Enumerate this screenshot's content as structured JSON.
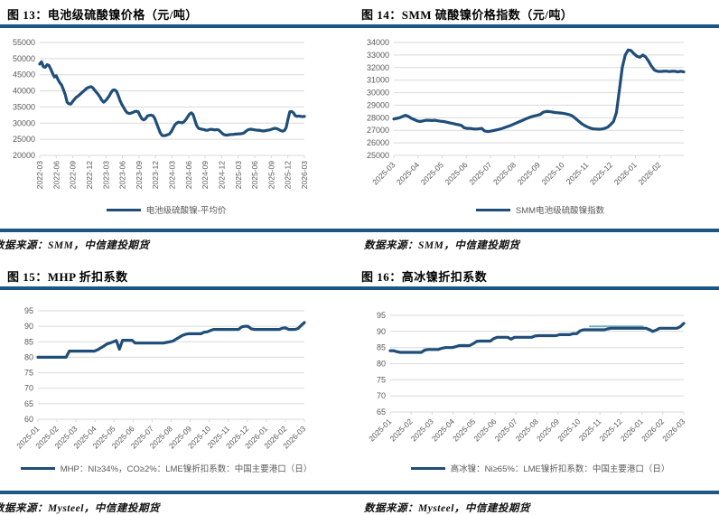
{
  "colors": {
    "rule": "#1A5784",
    "series": "#1F4E79",
    "grid": "#D9D9D9",
    "axis_text": "#595959",
    "overlay": "#7DA7C4"
  },
  "sources": {
    "top_left": "数据来源：SMM，中信建投期货",
    "top_right": "数据来源：SMM，中信建投期货",
    "bottom_left": "数据来源：Mysteel，中信建投期货",
    "bottom_right": "数据来源：Mysteel，中信建投期货"
  },
  "chart_data": [
    {
      "type": "line",
      "title": "图 13：电池级硫酸镍价格（元/吨）",
      "legend": "电池级硫酸镍-平均价",
      "legend_position": "bottom",
      "grid": true,
      "x_label_style": "vertical",
      "ylim": [
        20000,
        55000
      ],
      "y_ticks": [
        55000,
        50000,
        45000,
        40000,
        35000,
        30000,
        25000,
        20000
      ],
      "x_labels": [
        "2022-03",
        "2022-06",
        "2022-09",
        "2022-12",
        "2023-03",
        "2023-06",
        "2023-09",
        "2023-12",
        "2024-03",
        "2024-06",
        "2024-09",
        "2024-12",
        "2025-03",
        "2025-06",
        "2025-09",
        "2025-12",
        "2026-03"
      ],
      "series": [
        {
          "name": "电池级硫酸镍-平均价",
          "color": "#1F4E79",
          "values": [
            48300,
            49000,
            47500,
            47300,
            48100,
            47900,
            46800,
            45500,
            44300,
            44700,
            43500,
            42500,
            41800,
            40300,
            38800,
            36500,
            36000,
            35900,
            36700,
            37400,
            38000,
            38400,
            38900,
            39400,
            39900,
            40400,
            40900,
            41100,
            41300,
            41000,
            40300,
            39600,
            38900,
            38100,
            37100,
            36500,
            36900,
            37600,
            38400,
            39400,
            40200,
            40300,
            39900,
            38600,
            37000,
            35800,
            34800,
            33800,
            33200,
            33000,
            33100,
            33300,
            33600,
            33700,
            33500,
            32300,
            31300,
            31000,
            31400,
            32200,
            32400,
            32500,
            32300,
            31500,
            30000,
            28500,
            27000,
            26200,
            26100,
            26200,
            26400,
            26600,
            27300,
            28400,
            29400,
            30000,
            30300,
            30200,
            30100,
            30400,
            31100,
            31900,
            32800,
            33200,
            32700,
            30900,
            29200,
            28400,
            28200,
            28100,
            28000,
            27800,
            27800,
            28000,
            28100,
            28000,
            27900,
            28000,
            27900,
            27400,
            26800,
            26400,
            26300,
            26300,
            26400,
            26500,
            26500,
            26600,
            26600,
            26700,
            26700,
            26800,
            27000,
            27500,
            27900,
            28100,
            28100,
            28000,
            27900,
            27800,
            27800,
            27700,
            27600,
            27600,
            27700,
            27800,
            27900,
            28100,
            28300,
            28400,
            28300,
            28000,
            27700,
            27500,
            27700,
            28600,
            31200,
            33500,
            33600,
            33200,
            32300,
            32100,
            32200,
            32100,
            32000,
            32100
          ]
        }
      ],
      "source_note": "数据来源：SMM，中信建投期货"
    },
    {
      "type": "line",
      "title": "图 14：SMM 硫酸镍价格指数（元/吨）",
      "legend": "SMM电池级硫酸镍指数",
      "legend_position": "bottom",
      "grid": true,
      "x_label_style": "angled45",
      "ylim": [
        25000,
        34000
      ],
      "y_ticks": [
        34000,
        33000,
        32000,
        31000,
        30000,
        29000,
        28000,
        27000,
        26000,
        25000
      ],
      "x_labels": [
        "2025-03",
        "2025-04",
        "2025-05",
        "2025-06",
        "2025-07",
        "2025-08",
        "2025-09",
        "2025-10",
        "2025-11",
        "2025-12",
        "2026-01",
        "2026-02"
      ],
      "series": [
        {
          "name": "SMM电池级硫酸镍指数",
          "color": "#1F4E79",
          "values": [
            27900,
            27950,
            28000,
            28100,
            28200,
            28100,
            27950,
            27850,
            27750,
            27700,
            27750,
            27800,
            27800,
            27780,
            27800,
            27760,
            27720,
            27700,
            27650,
            27600,
            27550,
            27500,
            27450,
            27400,
            27200,
            27150,
            27150,
            27120,
            27100,
            27120,
            27150,
            26950,
            26900,
            26930,
            26980,
            27030,
            27080,
            27150,
            27230,
            27310,
            27400,
            27500,
            27600,
            27700,
            27800,
            27900,
            28000,
            28080,
            28150,
            28200,
            28260,
            28440,
            28500,
            28500,
            28460,
            28420,
            28400,
            28380,
            28340,
            28300,
            28240,
            28140,
            27950,
            27750,
            27550,
            27400,
            27280,
            27180,
            27120,
            27100,
            27090,
            27100,
            27150,
            27250,
            27450,
            27700,
            28400,
            30200,
            32000,
            33000,
            33400,
            33350,
            33100,
            32900,
            32820,
            33000,
            32850,
            32500,
            32100,
            31800,
            31700,
            31680,
            31700,
            31720,
            31680,
            31700,
            31700,
            31660,
            31700,
            31650
          ]
        }
      ],
      "source_note": "数据来源：SMM，中信建投期货"
    },
    {
      "type": "line",
      "title": "图 15：MHP 折扣系数",
      "legend": "MHP：NI≥34%，CO≥2%：LME镍折扣系数：中国主要港口（日）",
      "legend_position": "bottom",
      "grid": true,
      "x_label_style": "angled45",
      "ylim": [
        60,
        95
      ],
      "y_ticks": [
        95,
        90,
        85,
        80,
        75,
        70,
        65,
        60
      ],
      "x_labels": [
        "2025-01",
        "2025-02",
        "2025-03",
        "2025-04",
        "2025-05",
        "2025-06",
        "2025-07",
        "2025-08",
        "2025-09",
        "2025-10",
        "2025-11",
        "2025-12",
        "2026-01",
        "2026-02",
        "2026-03"
      ],
      "series": [
        {
          "name": "MHP：NI≥34%，CO≥2%：LME镍折扣系数：中国主要港口（日）",
          "color": "#1F4E79",
          "values": [
            80,
            80,
            80,
            80,
            80,
            80,
            80,
            80,
            80,
            80,
            82,
            82,
            82,
            82,
            82,
            82,
            82,
            82,
            82,
            82.4,
            83.0,
            83.6,
            84.3,
            84.6,
            85.0,
            85.4,
            82.6,
            85.5,
            85.5,
            85.5,
            85.5,
            84.6,
            84.6,
            84.6,
            84.6,
            84.6,
            84.6,
            84.6,
            84.6,
            84.6,
            84.6,
            84.8,
            85.0,
            85.2,
            85.8,
            86.4,
            87.0,
            87.4,
            87.6,
            87.6,
            87.6,
            87.6,
            87.6,
            88.1,
            88.2,
            88.6,
            89.0,
            89.0,
            89.0,
            89.0,
            89.0,
            89.0,
            89.0,
            89.0,
            89.0,
            89.8,
            90.0,
            90.0,
            89.2,
            89.0,
            89.0,
            89.0,
            89.0,
            89.0,
            89.0,
            89.0,
            89.0,
            89.0,
            89.4,
            89.5,
            89.0,
            89.0,
            89.0,
            89.3,
            90.3,
            91.2
          ]
        }
      ],
      "source_note": "数据来源：Mysteel，中信建投期货"
    },
    {
      "type": "line",
      "title": "图 16：高冰镍折扣系数",
      "legend": "高冰镍：Ni≥65%：LME镍折扣系数：中国主要港口（日）",
      "legend_position": "bottom",
      "grid": true,
      "x_label_style": "angled45",
      "ylim": [
        65,
        95
      ],
      "y_ticks": [
        95,
        90,
        85,
        80,
        75,
        70,
        65
      ],
      "x_labels": [
        "2025-01",
        "2025-02",
        "2025-03",
        "2025-04",
        "2025-05",
        "2025-06",
        "2025-07",
        "2025-08",
        "2025-09",
        "2025-10",
        "2025-11",
        "2025-12",
        "2026-01",
        "2026-02",
        "2026-03"
      ],
      "overlay": {
        "color": "#7DA7C4",
        "points": [
          [
            0.68,
            91.55
          ],
          [
            0.86,
            91.55
          ]
        ]
      },
      "series": [
        {
          "name": "高冰镍：Ni≥65%：LME镍折扣系数：中国主要港口（日）",
          "color": "#1F4E79",
          "values": [
            84.0,
            84.0,
            83.7,
            83.5,
            83.5,
            83.5,
            83.5,
            83.5,
            83.5,
            83.5,
            84.2,
            84.4,
            84.4,
            84.4,
            84.4,
            84.8,
            85.0,
            85.0,
            85.0,
            85.3,
            85.6,
            85.6,
            85.6,
            85.6,
            86.2,
            86.9,
            87.0,
            87.0,
            87.0,
            87.0,
            87.8,
            88.2,
            88.2,
            88.2,
            88.2,
            87.6,
            88.2,
            88.2,
            88.2,
            88.2,
            88.2,
            88.2,
            88.6,
            88.7,
            88.7,
            88.7,
            88.7,
            88.7,
            88.7,
            89.0,
            89.0,
            89.0,
            89.0,
            89.3,
            89.3,
            90.2,
            90.5,
            90.5,
            90.5,
            90.5,
            90.5,
            90.5,
            90.5,
            90.8,
            91.0,
            91.0,
            91.0,
            91.0,
            91.0,
            91.0,
            91.0,
            91.0,
            91.0,
            91.0,
            91.0,
            90.6,
            90.0,
            90.4,
            91.0,
            91.0,
            91.0,
            91.0,
            91.0,
            91.0,
            91.5,
            92.5
          ]
        }
      ],
      "source_note": "数据来源：Mysteel，中信建投期货"
    }
  ]
}
